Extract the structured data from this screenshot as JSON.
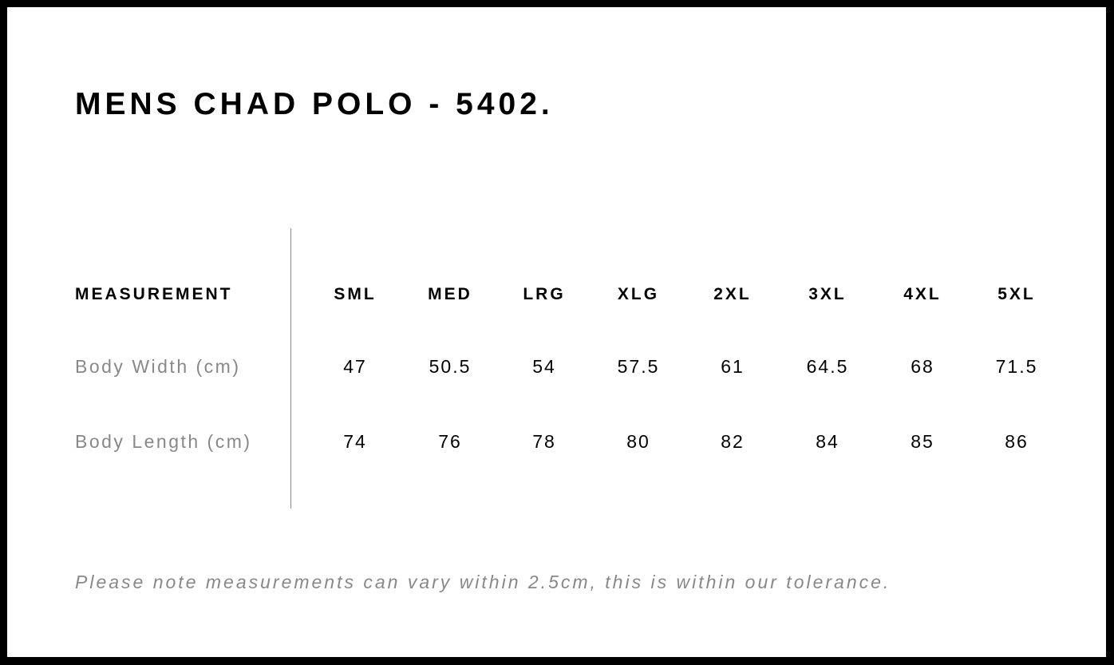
{
  "title": "MENS CHAD POLO - 5402.",
  "table": {
    "header": {
      "label": "MEASUREMENT",
      "sizes": [
        "SML",
        "MED",
        "LRG",
        "XLG",
        "2XL",
        "3XL",
        "4XL",
        "5XL"
      ]
    },
    "rows": [
      {
        "label": "Body Width (cm)",
        "values": [
          "47",
          "50.5",
          "54",
          "57.5",
          "61",
          "64.5",
          "68",
          "71.5"
        ]
      },
      {
        "label": "Body Length (cm)",
        "values": [
          "74",
          "76",
          "78",
          "80",
          "82",
          "84",
          "85",
          "86"
        ]
      }
    ]
  },
  "note": "Please note measurements can vary within 2.5cm, this is within our tolerance.",
  "colors": {
    "frame": "#000000",
    "text": "#000000",
    "muted": "#888888"
  }
}
